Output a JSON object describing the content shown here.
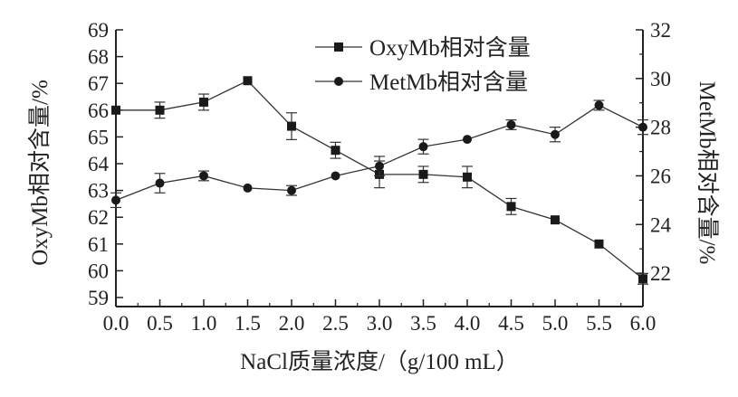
{
  "chart_data": {
    "type": "line",
    "title": "",
    "xlabel": "NaCl质量浓度/（g/100 mL）",
    "ylabel_left": "OxyMb相对含量/%",
    "ylabel_right": "MetMb相对含量/%",
    "x": [
      0.0,
      0.5,
      1.0,
      1.5,
      2.0,
      2.5,
      3.0,
      3.5,
      4.0,
      4.5,
      5.0,
      5.5,
      6.0
    ],
    "x_tick_labels": [
      "0.0",
      "0.5",
      "1.0",
      "1.5",
      "2.0",
      "2.5",
      "3.0",
      "3.5",
      "4.0",
      "4.5",
      "5.0",
      "5.5",
      "6.0"
    ],
    "xlim": [
      0.0,
      6.0
    ],
    "ylim_left": [
      59,
      69
    ],
    "y_left_ticks": [
      "59",
      "60",
      "61",
      "62",
      "63",
      "64",
      "65",
      "66",
      "67",
      "68",
      "69"
    ],
    "ylim_right": [
      21,
      32
    ],
    "y_right_ticks": [
      "22",
      "24",
      "26",
      "28",
      "30",
      "32"
    ],
    "grid": false,
    "legend_position": "top-center",
    "series": [
      {
        "name": "OxyMb相对含量",
        "axis": "left",
        "marker": "square",
        "values": [
          66.0,
          66.0,
          66.3,
          67.1,
          65.4,
          64.5,
          63.6,
          63.6,
          63.5,
          62.4,
          61.9,
          61.0,
          59.7
        ],
        "errors": [
          0.1,
          0.3,
          0.3,
          0.1,
          0.5,
          0.3,
          0.5,
          0.3,
          0.4,
          0.3,
          0.1,
          0.1,
          0.2
        ]
      },
      {
        "name": "MetMb相对含量",
        "axis": "right",
        "marker": "circle",
        "values": [
          25.0,
          25.7,
          26.0,
          25.5,
          25.4,
          26.0,
          26.4,
          27.2,
          27.5,
          28.1,
          27.7,
          28.9,
          28.0
        ],
        "errors": [
          0.3,
          0.4,
          0.2,
          0.1,
          0.2,
          0.1,
          0.4,
          0.3,
          0.1,
          0.2,
          0.3,
          0.2,
          0.3
        ]
      }
    ],
    "colors": {
      "line": "#333333",
      "marker": "#1a1a1a",
      "axis": "#222222"
    }
  }
}
